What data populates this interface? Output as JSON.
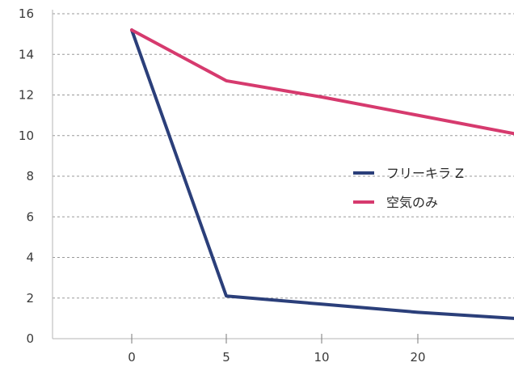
{
  "chart_data": {
    "type": "line",
    "title": "",
    "xlabel": "",
    "ylabel": "",
    "categories": [
      "0",
      "5",
      "10",
      "20",
      ""
    ],
    "ylim": [
      0,
      16
    ],
    "yticks": [
      "0",
      "2",
      "4",
      "6",
      "8",
      "10",
      "12",
      "14",
      "16"
    ],
    "grid": true,
    "legend_placement": "right",
    "series": [
      {
        "name": "フリーキラ Z",
        "color": "#2b3f7a",
        "values": [
          15.2,
          2.1,
          1.7,
          1.3,
          1.0
        ]
      },
      {
        "name": "空気のみ",
        "color": "#d63a6e",
        "values": [
          15.2,
          12.7,
          11.9,
          11.0,
          10.1
        ]
      }
    ]
  }
}
